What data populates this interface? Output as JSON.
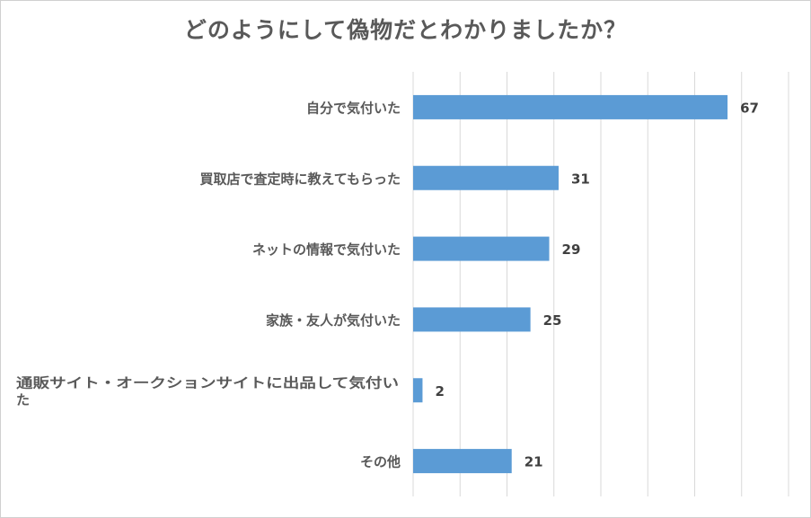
{
  "chart_data": {
    "type": "bar",
    "orientation": "horizontal",
    "title": "どのようにして偽物だとわかりましたか？",
    "categories": [
      "自分で気付いた",
      "買取店で査定時に教えてもらった",
      "ネットの情報で気付いた",
      "家族・友人が気付いた",
      "通販サイト・オークションサイトに出品して気付いた",
      "その他"
    ],
    "category_lines": [
      [
        "自分で気付いた"
      ],
      [
        "買取店で査定時に教えてもらった"
      ],
      [
        "ネットの情報で気付いた"
      ],
      [
        "家族・友人が気付いた"
      ],
      [
        "通販サイト・オークションサイトに出品して気付い",
        "た"
      ],
      [
        "その他"
      ]
    ],
    "values": [
      67,
      31,
      29,
      25,
      2,
      21
    ],
    "xlim": [
      0,
      80
    ],
    "grid": true,
    "bar_color": "#5b9bd5",
    "grid_color": "#d9d9d9"
  }
}
